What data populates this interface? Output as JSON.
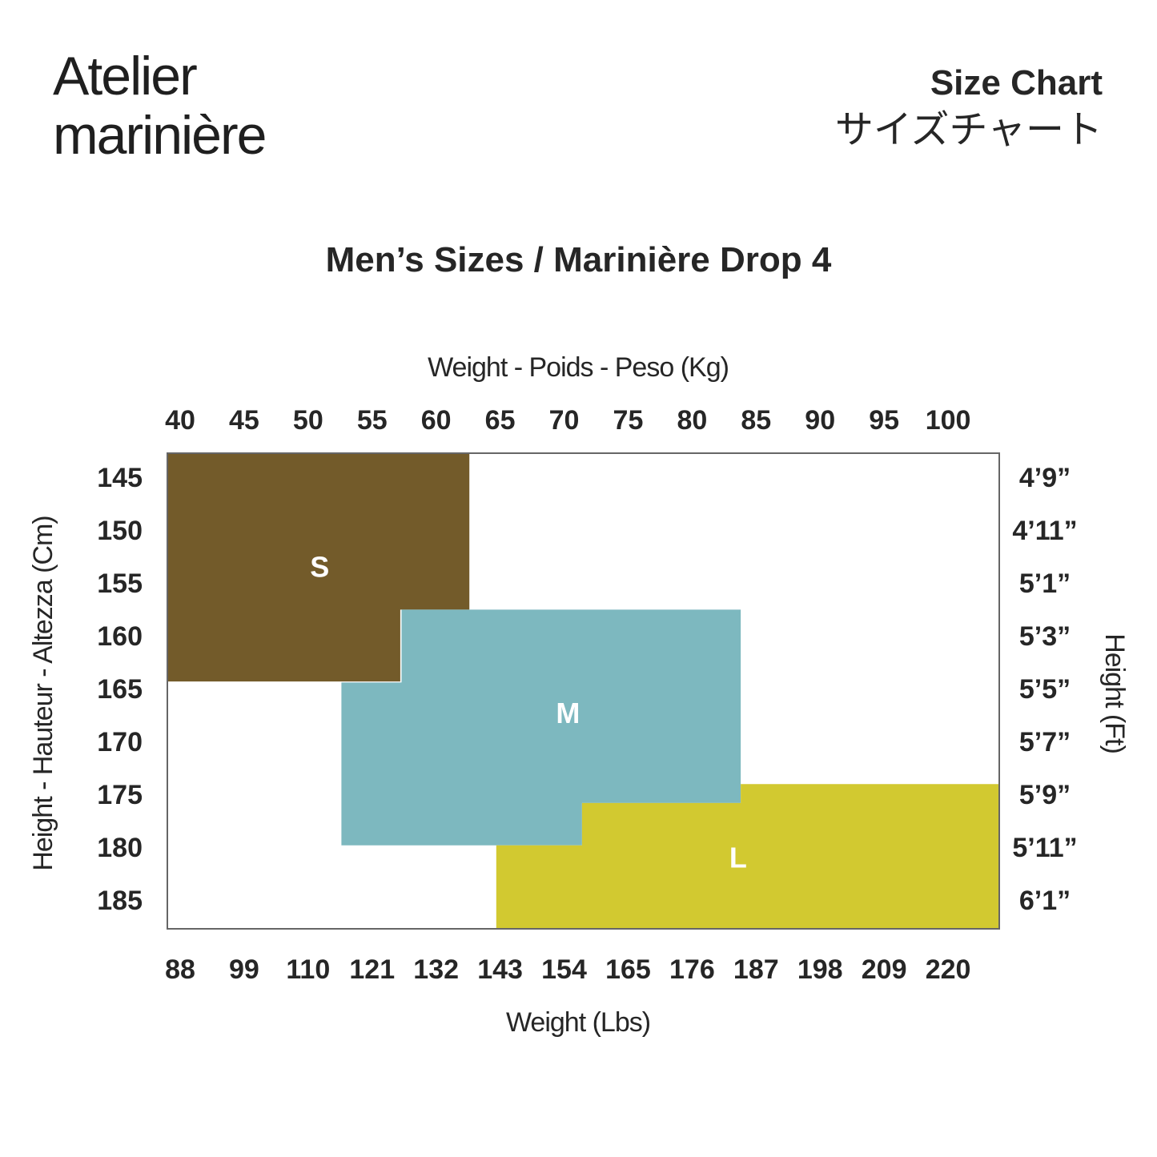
{
  "brand": {
    "line1": "Atelier",
    "line2": "marinière"
  },
  "header": {
    "title_en": "Size Chart",
    "title_jp": "サイズチャート"
  },
  "chart_data": {
    "type": "heatmap",
    "title": "Men’s Sizes / Marinière Drop 4",
    "x_top": {
      "label": "Weight - Poids - Peso (Kg)",
      "ticks": [
        40,
        45,
        50,
        55,
        60,
        65,
        70,
        75,
        80,
        85,
        90,
        95,
        100
      ],
      "range": [
        39,
        104
      ]
    },
    "x_bottom": {
      "label": "Weight (Lbs)",
      "ticks": [
        "88",
        "99",
        "110",
        "121",
        "132",
        "143",
        "154",
        "165",
        "176",
        "187",
        "198",
        "209",
        "220"
      ]
    },
    "y_left": {
      "label": "Height - Hauteur - Altezza (Cm)",
      "ticks": [
        145,
        150,
        155,
        160,
        165,
        170,
        175,
        180,
        185
      ],
      "range": [
        142.5,
        187.5
      ]
    },
    "y_right": {
      "label": "Height (Ft)",
      "ticks": [
        "4’9”",
        "4’11”",
        "5’1”",
        "5’3”",
        "5’5”",
        "5’7”",
        "5’9”",
        "5’11”",
        "6’1”"
      ]
    },
    "zones": [
      {
        "name": "S",
        "color": "#735b2a",
        "polygon": [
          [
            39,
            142.5
          ],
          [
            62.6,
            142.5
          ],
          [
            62.6,
            157.3
          ],
          [
            57.2,
            157.3
          ],
          [
            57.2,
            164.1
          ],
          [
            39,
            164.1
          ]
        ]
      },
      {
        "name": "M",
        "color": "#7db8bf",
        "polygon": [
          [
            57.3,
            157.3
          ],
          [
            83.8,
            157.3
          ],
          [
            83.8,
            175.6
          ],
          [
            71.4,
            175.6
          ],
          [
            71.4,
            179.6
          ],
          [
            52.6,
            179.6
          ],
          [
            52.6,
            164.2
          ],
          [
            57.3,
            164.2
          ]
        ]
      },
      {
        "name": "L",
        "color": "#d2c930",
        "polygon": [
          [
            83.8,
            173.8
          ],
          [
            104,
            173.8
          ],
          [
            104,
            187.5
          ],
          [
            64.7,
            187.5
          ],
          [
            64.7,
            179.6
          ],
          [
            71.4,
            179.6
          ],
          [
            71.4,
            175.6
          ],
          [
            83.8,
            175.6
          ]
        ]
      }
    ],
    "label_positions": {
      "S": [
        50.9,
        153.5
      ],
      "M": [
        70.3,
        167.3
      ],
      "L": [
        83.6,
        181.0
      ]
    }
  }
}
